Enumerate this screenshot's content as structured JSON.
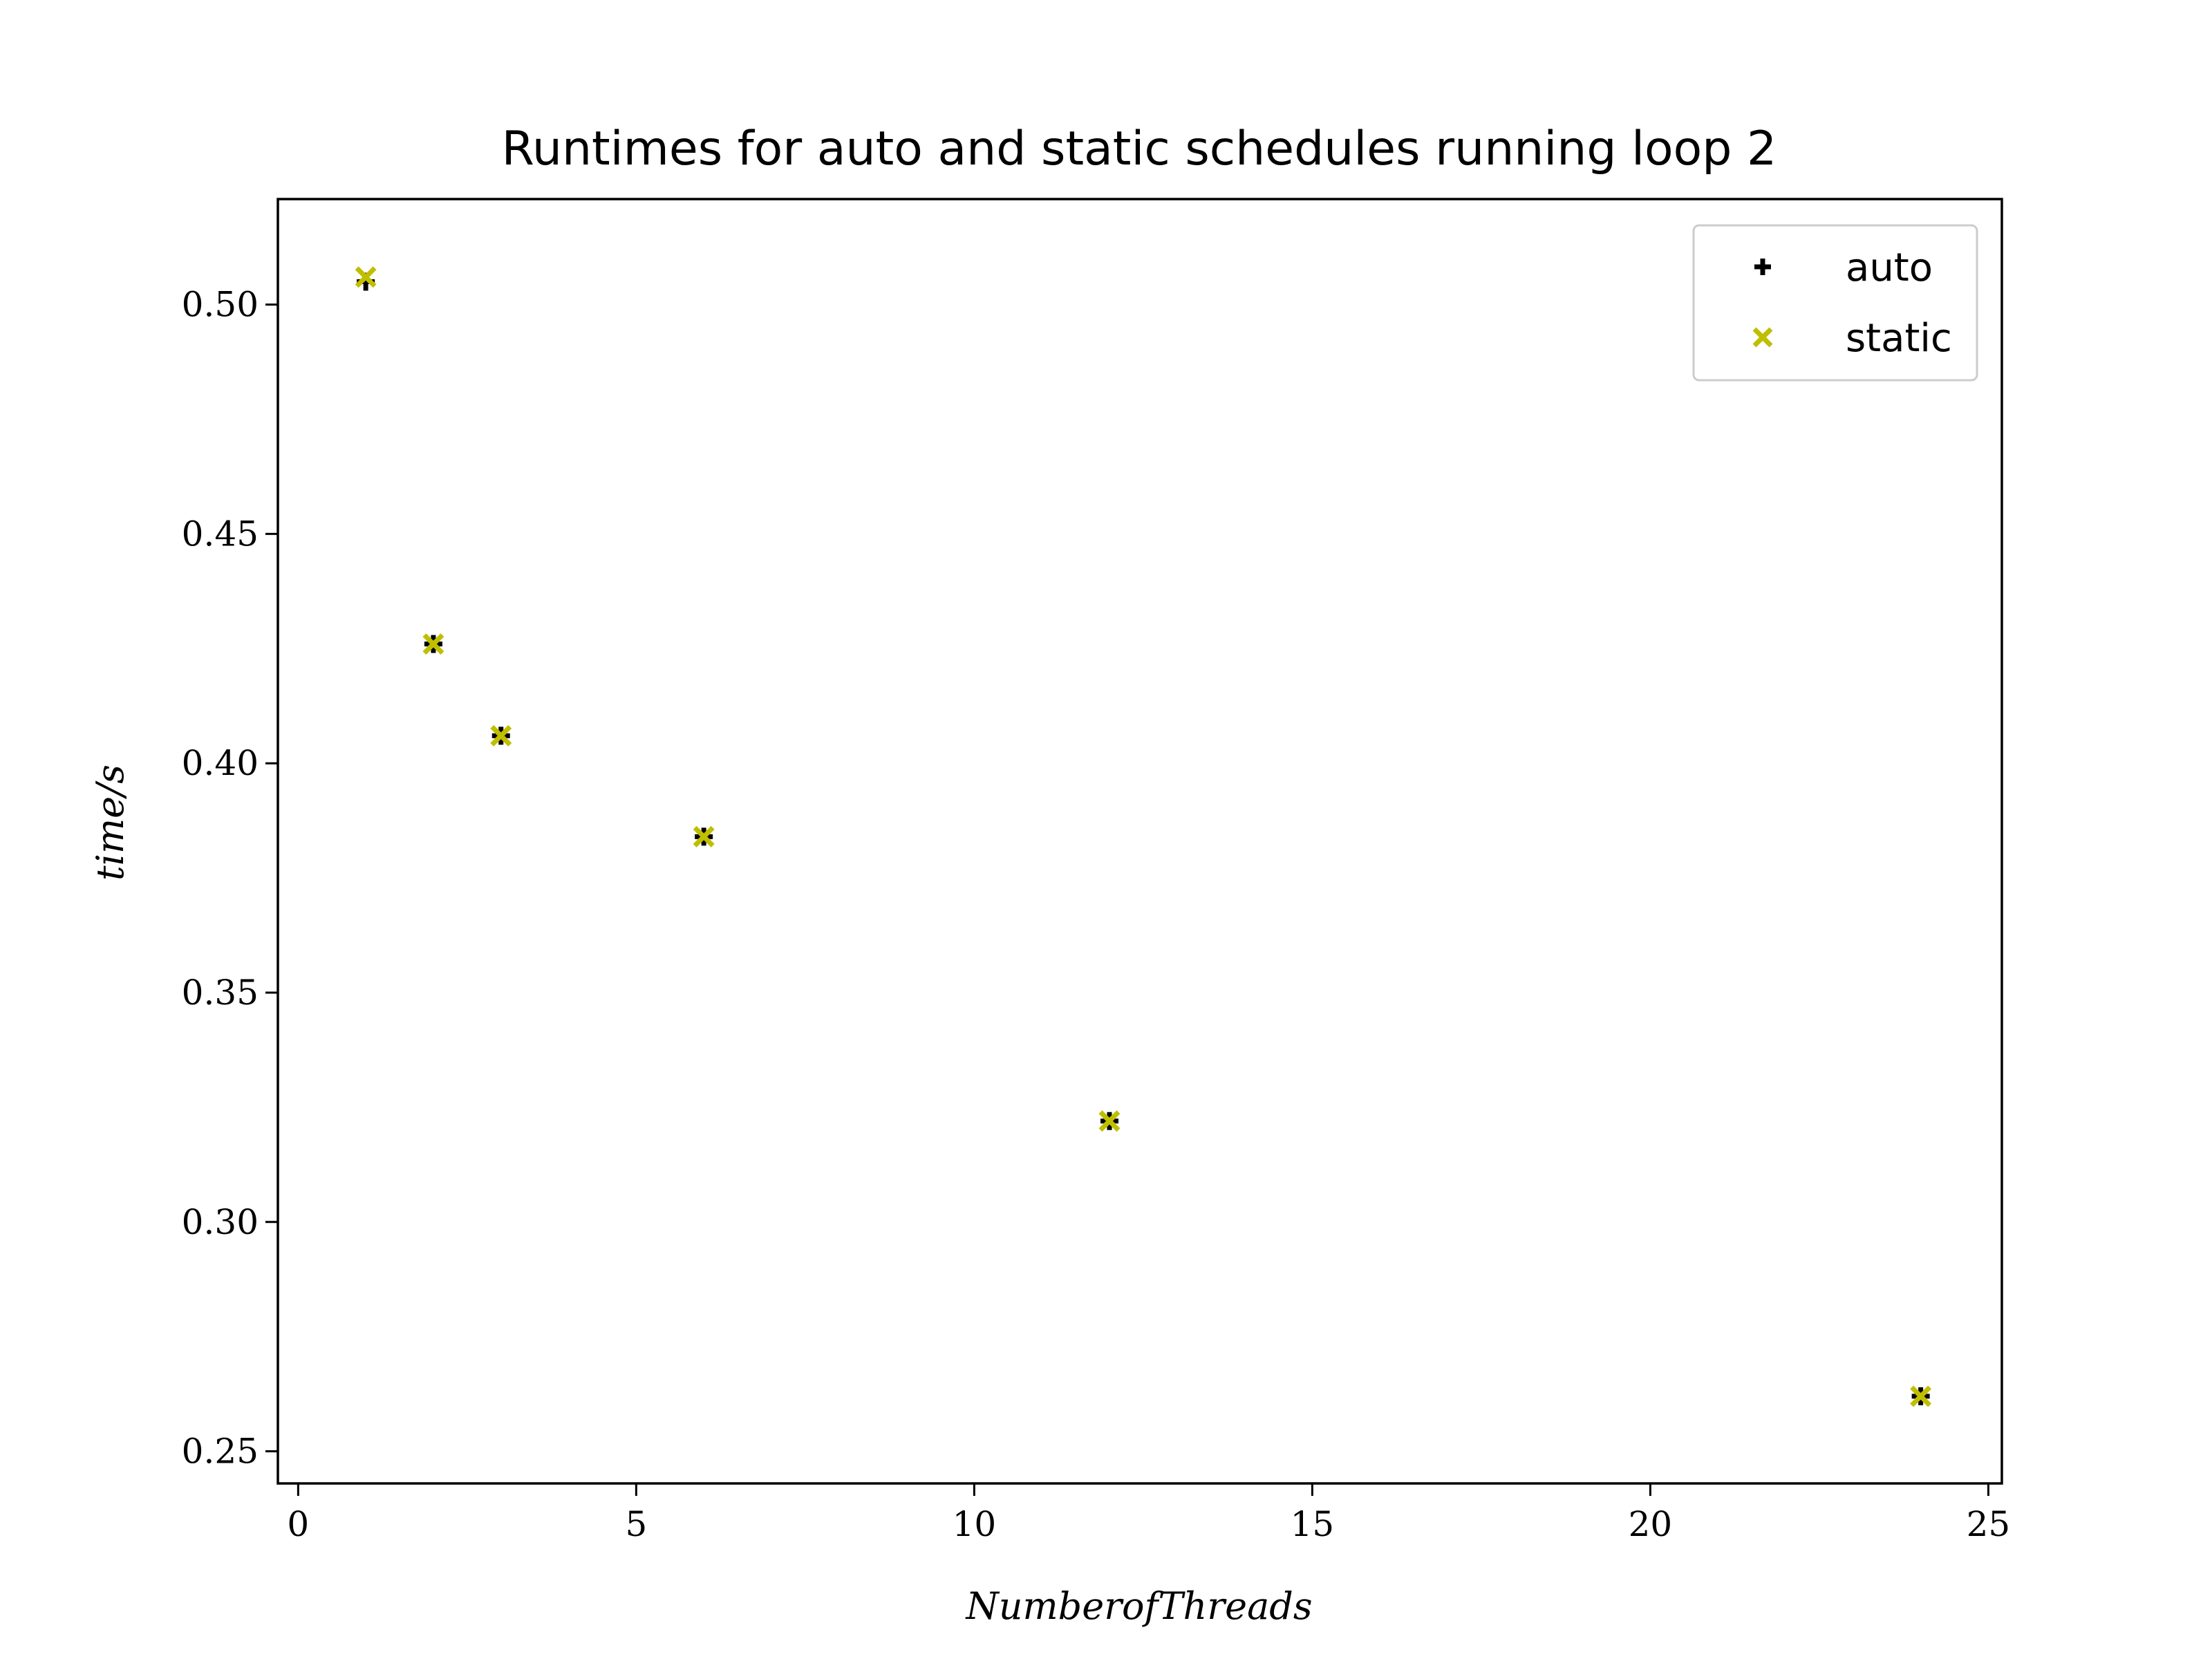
{
  "chart_data": {
    "type": "scatter",
    "title": "Runtimes for auto and static schedules running loop 2",
    "xlabel": "NumberofThreads",
    "ylabel": "time/s",
    "xlim": [
      -0.3,
      25.2
    ],
    "ylim": [
      0.243,
      0.523
    ],
    "xticks": [
      0,
      5,
      10,
      15,
      20,
      25
    ],
    "yticks": [
      0.25,
      0.3,
      0.35,
      0.4,
      0.45,
      0.5
    ],
    "ytick_labels": [
      "0.25",
      "0.30",
      "0.35",
      "0.40",
      "0.45",
      "0.50"
    ],
    "grid": false,
    "legend_position": "top-right",
    "series": [
      {
        "name": "auto",
        "marker": "plus",
        "color": "#000000",
        "x": [
          1,
          2,
          3,
          6,
          12,
          24
        ],
        "y": [
          0.505,
          0.426,
          0.406,
          0.384,
          0.322,
          0.262
        ]
      },
      {
        "name": "static",
        "marker": "x",
        "color": "#bfbf00",
        "x": [
          1,
          2,
          3,
          6,
          12,
          24
        ],
        "y": [
          0.506,
          0.426,
          0.406,
          0.384,
          0.322,
          0.262
        ]
      }
    ]
  }
}
